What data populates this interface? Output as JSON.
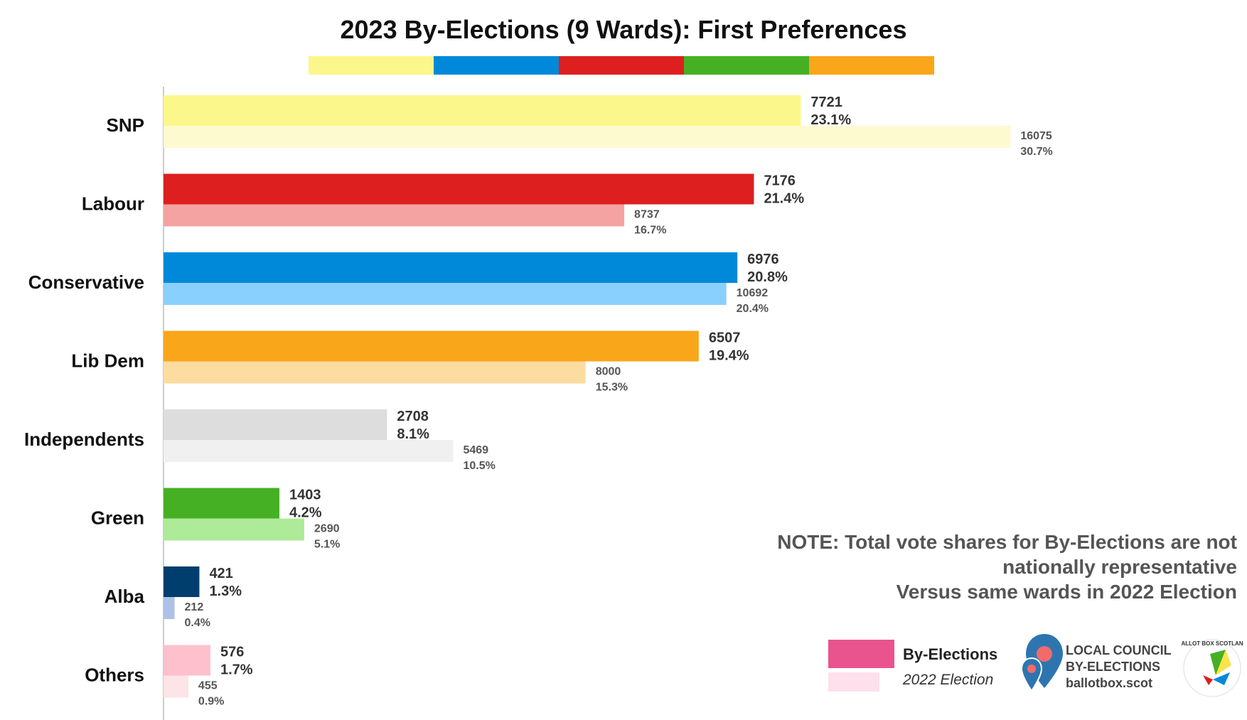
{
  "chart_data": {
    "type": "bar",
    "orientation": "horizontal",
    "title": "2023 By-Elections (9 Wards): First Preferences",
    "title_colors": [
      "#FBF78A",
      "#0089D9",
      "#DD1F1F",
      "#46B024",
      "#F9A61A"
    ],
    "categories": [
      "SNP",
      "Labour",
      "Conservative",
      "Lib Dem",
      "Independents",
      "Green",
      "Alba",
      "Others"
    ],
    "series": [
      {
        "name": "By-Elections",
        "values": [
          7721,
          7176,
          6976,
          6507,
          2708,
          1403,
          421,
          576
        ],
        "shares": [
          "23.1%",
          "21.4%",
          "20.8%",
          "19.4%",
          "8.1%",
          "4.2%",
          "1.3%",
          "1.7%"
        ],
        "colors": [
          "#FBF78A",
          "#DD1F1F",
          "#0089D9",
          "#F9A61A",
          "#DDDDDD",
          "#46B024",
          "#003E6E",
          "#FFC0CE"
        ]
      },
      {
        "name": "2022 Election",
        "values": [
          16075,
          8737,
          10692,
          8000,
          5469,
          2690,
          212,
          455
        ],
        "shares": [
          "30.7%",
          "16.7%",
          "20.4%",
          "15.3%",
          "10.5%",
          "5.1%",
          "0.4%",
          "0.9%"
        ],
        "colors": [
          "#FDFAD0",
          "#F4A2A2",
          "#8AD0FC",
          "#FCDCA1",
          "#F0F0F0",
          "#ADEB98",
          "#AEC1E8",
          "#FDE4E6"
        ]
      }
    ],
    "axis_max": 33.5,
    "grid": false,
    "legend_position": "bottom-right"
  },
  "note": {
    "line1": "NOTE: Total vote shares for By-Elections are not",
    "line2": "nationally representative",
    "line3": "Versus same wards in 2022 Election"
  },
  "legend": {
    "main_label": "By-Elections",
    "prev_label": "2022 Election",
    "main_color": "#E9548E",
    "prev_color": "#FDE0EC"
  },
  "brand": {
    "line1": "LOCAL COUNCIL",
    "line2": "BY-ELECTIONS",
    "line3": "ballotbox.scot",
    "seal_text": "BALLOT BOX SCOTLAND"
  }
}
